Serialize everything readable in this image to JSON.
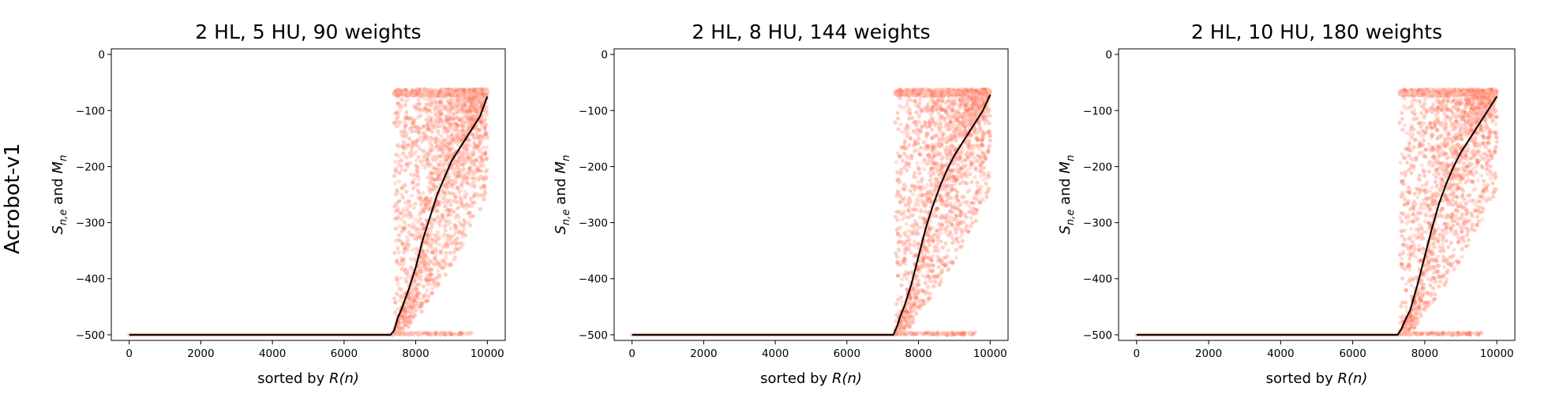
{
  "figure": {
    "row_label": "Acrobot-v1",
    "point_color": "#ff7f66",
    "point_color_light": "#ffc4b8",
    "line_color": "#000000"
  },
  "chart_data": [
    {
      "type": "scatter",
      "title": "2 HL, 5 HU, 90 weights",
      "xlabel": "sorted by R(n)",
      "ylabel": "S_{n,e} and M_n",
      "xlim": [
        -500,
        10500
      ],
      "ylim": [
        -510,
        10
      ],
      "xticks": [
        "0",
        "2000",
        "4000",
        "6000",
        "8000",
        "10000"
      ],
      "yticks": [
        "0",
        "−100",
        "−200",
        "−300",
        "−400",
        "−500"
      ],
      "series": [
        {
          "kind": "scatter",
          "description_of_spread": "episode scores per ranked policy",
          "onset_x": 7400,
          "floor": -500,
          "ceiling": -62
        },
        {
          "kind": "line",
          "x": [
            0,
            7300,
            7400,
            7500,
            7600,
            7800,
            8000,
            8200,
            8400,
            8600,
            8800,
            9000,
            9200,
            9400,
            9600,
            9800,
            10000
          ],
          "y": [
            -500,
            -500,
            -492,
            -470,
            -455,
            -420,
            -380,
            -330,
            -290,
            -250,
            -220,
            -190,
            -170,
            -150,
            -130,
            -110,
            -75
          ]
        }
      ]
    },
    {
      "type": "scatter",
      "title": "2 HL, 8 HU, 144 weights",
      "xlabel": "sorted by R(n)",
      "ylabel": "S_{n,e} and M_n",
      "xlim": [
        -500,
        10500
      ],
      "ylim": [
        -510,
        10
      ],
      "xticks": [
        "0",
        "2000",
        "4000",
        "6000",
        "8000",
        "10000"
      ],
      "yticks": [
        "0",
        "−100",
        "−200",
        "−300",
        "−400",
        "−500"
      ],
      "series": [
        {
          "kind": "scatter",
          "description_of_spread": "episode scores per ranked policy",
          "onset_x": 7350,
          "floor": -500,
          "ceiling": -62
        },
        {
          "kind": "line",
          "x": [
            0,
            7300,
            7400,
            7500,
            7600,
            7800,
            8000,
            8200,
            8400,
            8600,
            8800,
            9000,
            9200,
            9400,
            9600,
            9800,
            10000
          ],
          "y": [
            -500,
            -500,
            -485,
            -465,
            -450,
            -410,
            -360,
            -310,
            -270,
            -235,
            -205,
            -180,
            -160,
            -140,
            -120,
            -100,
            -72
          ]
        }
      ]
    },
    {
      "type": "scatter",
      "title": "2 HL, 10 HU, 180 weights",
      "xlabel": "sorted by R(n)",
      "ylabel": "S_{n,e} and M_n",
      "xlim": [
        -500,
        10500
      ],
      "ylim": [
        -510,
        10
      ],
      "xticks": [
        "0",
        "2000",
        "4000",
        "6000",
        "8000",
        "10000"
      ],
      "yticks": [
        "0",
        "−100",
        "−200",
        "−300",
        "−400",
        "−500"
      ],
      "series": [
        {
          "kind": "scatter",
          "description_of_spread": "episode scores per ranked policy",
          "onset_x": 7300,
          "floor": -500,
          "ceiling": -62
        },
        {
          "kind": "line",
          "x": [
            0,
            7250,
            7350,
            7450,
            7600,
            7800,
            8000,
            8200,
            8400,
            8600,
            8800,
            9000,
            9200,
            9400,
            9600,
            9800,
            10000
          ],
          "y": [
            -500,
            -500,
            -490,
            -475,
            -455,
            -410,
            -360,
            -310,
            -265,
            -230,
            -200,
            -175,
            -155,
            -135,
            -115,
            -95,
            -75
          ]
        }
      ]
    }
  ]
}
